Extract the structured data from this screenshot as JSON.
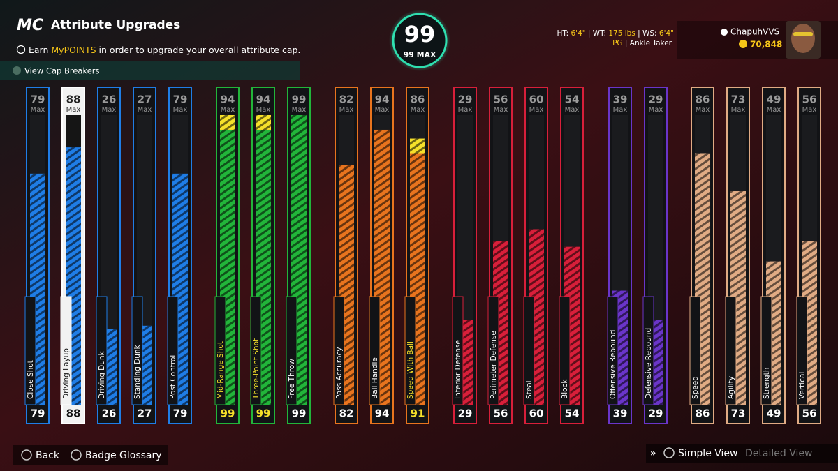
{
  "header": {
    "logo": "MC",
    "title": "Attribute Upgrades",
    "info": {
      "prefix": "Earn",
      "highlight": "MyPOINTS",
      "suffix": "in order to upgrade your overall attribute cap."
    },
    "cap_breakers": "View Cap Breakers"
  },
  "overall": {
    "value": 99,
    "max_label": "99 MAX"
  },
  "player": {
    "height_label": "HT:",
    "height": "6'4\"",
    "weight_label": "WT:",
    "weight": "175 lbs",
    "wingspan_label": "WS:",
    "wingspan": "6'4\"",
    "position": "PG",
    "archetype": "Ankle Taker",
    "username": "ChapuhVVS",
    "vc": "70,848"
  },
  "max_label": "Max",
  "groups": [
    {
      "color": "#1f7de6",
      "attributes": [
        {
          "name": "Close Shot",
          "max": 79,
          "value": 79
        },
        {
          "name": "Driving Layup",
          "max": 88,
          "value": 88,
          "selected": true
        },
        {
          "name": "Driving Dunk",
          "max": 26,
          "value": 26
        },
        {
          "name": "Standing Dunk",
          "max": 27,
          "value": 27
        },
        {
          "name": "Post Control",
          "max": 79,
          "value": 79
        }
      ]
    },
    {
      "color": "#22b53a",
      "attributes": [
        {
          "name": "Mid-Range Shot",
          "max": 94,
          "value": 99
        },
        {
          "name": "Three-Point Shot",
          "max": 94,
          "value": 99
        },
        {
          "name": "Free Throw",
          "max": 99,
          "value": 99
        }
      ]
    },
    {
      "color": "#e8741e",
      "attributes": [
        {
          "name": "Pass Accuracy",
          "max": 82,
          "value": 82
        },
        {
          "name": "Ball Handle",
          "max": 94,
          "value": 94
        },
        {
          "name": "Speed With Ball",
          "max": 86,
          "value": 91
        }
      ]
    },
    {
      "color": "#d81f3a",
      "attributes": [
        {
          "name": "Interior Defense",
          "max": 29,
          "value": 29
        },
        {
          "name": "Perimeter Defense",
          "max": 56,
          "value": 56
        },
        {
          "name": "Steal",
          "max": 60,
          "value": 60
        },
        {
          "name": "Block",
          "max": 54,
          "value": 54
        }
      ]
    },
    {
      "color": "#6a35c9",
      "attributes": [
        {
          "name": "Offensive Rebound",
          "max": 39,
          "value": 39
        },
        {
          "name": "Defensive Rebound",
          "max": 29,
          "value": 29
        }
      ]
    },
    {
      "color": "#e0ab84",
      "attributes": [
        {
          "name": "Speed",
          "max": 86,
          "value": 86
        },
        {
          "name": "Agility",
          "max": 73,
          "value": 73
        },
        {
          "name": "Strength",
          "max": 49,
          "value": 49
        },
        {
          "name": "Vertical",
          "max": 56,
          "value": 56
        }
      ]
    }
  ],
  "footer": {
    "back": "Back",
    "glossary": "Badge Glossary",
    "simple": "Simple View",
    "detailed": "Detailed View"
  }
}
